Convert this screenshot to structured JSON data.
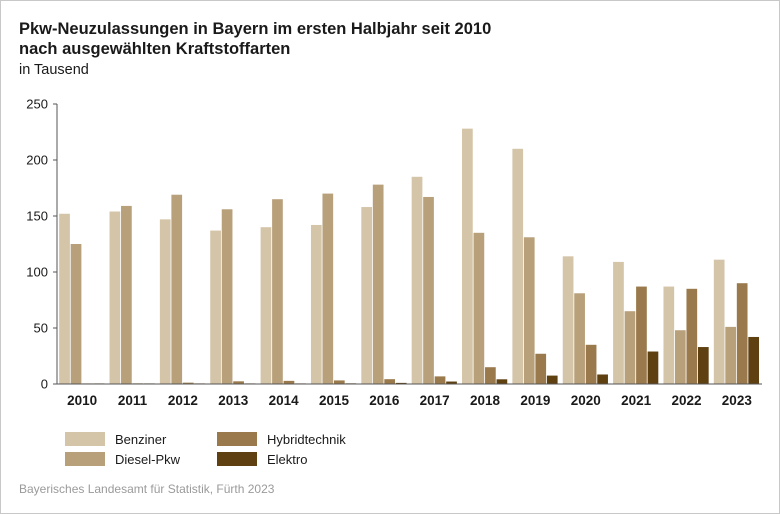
{
  "header": {
    "title_line1": "Pkw-Neuzulassungen in Bayern im ersten Halbjahr seit 2010",
    "title_line2": "nach ausgewählten Kraftstoffarten",
    "subtitle": "in Tausend"
  },
  "source": "Bayerisches Landesamt für Statistik, Fürth 2023",
  "chart_data": {
    "type": "bar",
    "title": "Pkw-Neuzulassungen in Bayern im ersten Halbjahr seit 2010 nach ausgewählten Kraftstoffarten",
    "ylabel": "in Tausend",
    "xlabel": "",
    "ylim": [
      0,
      250
    ],
    "yticks": [
      0,
      50,
      100,
      150,
      200,
      250
    ],
    "grid": false,
    "legend_position": "bottom-left",
    "categories": [
      "2010",
      "2011",
      "2012",
      "2013",
      "2014",
      "2015",
      "2016",
      "2017",
      "2018",
      "2019",
      "2020",
      "2021",
      "2022",
      "2023"
    ],
    "series": [
      {
        "name": "Benziner",
        "color": "#d4c4a8",
        "values": [
          152,
          154,
          147,
          137,
          140,
          142,
          158,
          185,
          228,
          210,
          114,
          109,
          87,
          111
        ]
      },
      {
        "name": "Diesel-Pkw",
        "color": "#b8a07a",
        "values": [
          125,
          159,
          169,
          156,
          165,
          170,
          178,
          167,
          135,
          131,
          81,
          65,
          48,
          51
        ]
      },
      {
        "name": "Hybridtechnik",
        "color": "#9a7a4c",
        "values": [
          0.3,
          0.6,
          1.2,
          2.4,
          2.8,
          3.2,
          4.3,
          6.8,
          15,
          27,
          35,
          87,
          85,
          90
        ]
      },
      {
        "name": "Elektro",
        "color": "#5e4011",
        "values": [
          0.05,
          0.1,
          0.2,
          0.4,
          0.5,
          0.6,
          1,
          2.2,
          4.2,
          7.5,
          8.5,
          29,
          33,
          42
        ]
      }
    ]
  }
}
